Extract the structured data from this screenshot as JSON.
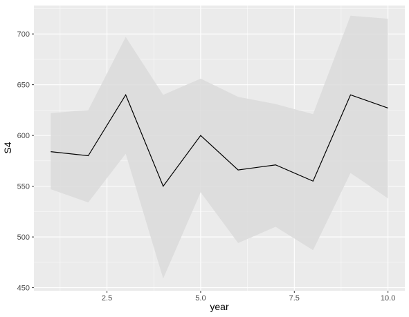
{
  "chart_data": {
    "type": "line",
    "xlabel": "year",
    "ylabel": "S4",
    "xlim": [
      0.55,
      10.45
    ],
    "ylim": [
      447,
      728
    ],
    "x_ticks": [
      2.5,
      5.0,
      7.5,
      10.0
    ],
    "x_tick_labels": [
      "2.5",
      "5.0",
      "7.5",
      "10.0"
    ],
    "y_ticks": [
      450,
      500,
      550,
      600,
      650,
      700
    ],
    "y_tick_labels": [
      "450",
      "500",
      "550",
      "600",
      "650",
      "700"
    ],
    "grid": true,
    "series": [
      {
        "x": [
          1,
          2,
          3,
          4,
          5,
          6,
          7,
          8,
          9,
          10
        ],
        "y": [
          584,
          580,
          640,
          550,
          600,
          566,
          571,
          555,
          640,
          627
        ],
        "ymin": [
          547,
          534,
          582,
          459,
          544,
          494,
          510,
          487,
          563,
          538
        ],
        "ymax": [
          622,
          625,
          697,
          640,
          656,
          638,
          631,
          621,
          718,
          715
        ]
      }
    ],
    "colors": {
      "panel": "#EBEBEB",
      "grid_major": "#FFFFFF",
      "ribbon": "#DADADA",
      "line": "#000000",
      "tick": "#333333"
    }
  }
}
